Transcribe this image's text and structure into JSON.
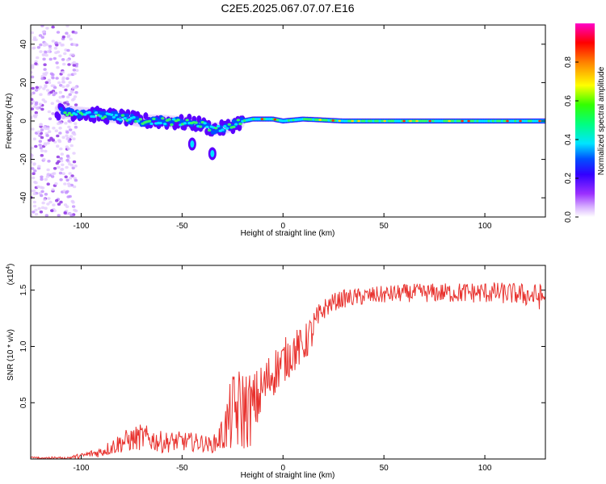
{
  "title": "C2E5.2025.067.07.07.E16",
  "chart_data": [
    {
      "type": "heatmap",
      "xlabel": "Height of straight line (km)",
      "ylabel": "Frequency (Hz)",
      "xlim": [
        -125,
        130
      ],
      "ylim": [
        -50,
        50
      ],
      "xticks": [
        -100,
        -50,
        0,
        50,
        100
      ],
      "yticks": [
        -40,
        -20,
        0,
        20,
        40
      ],
      "colorbar": {
        "label": "Normalized spectral amplitude",
        "range": [
          0,
          1
        ],
        "ticks": [
          "0.0",
          "0.2",
          "0.4",
          "0.6",
          "0.8"
        ],
        "colors": [
          "#ffffff",
          "#d9b3ff",
          "#9b30ff",
          "#3200ff",
          "#0050ff",
          "#00e5ff",
          "#00ff80",
          "#33ff00",
          "#ffff00",
          "#ff8000",
          "#ff0000",
          "#ff00c8"
        ]
      },
      "ridge": {
        "x": [
          -112,
          -100,
          -90,
          -80,
          -70,
          -60,
          -50,
          -45,
          -40,
          -35,
          -30,
          -25,
          -20,
          -15,
          -10,
          -5,
          0,
          10,
          30,
          60,
          100,
          130
        ],
        "freq_hz": [
          5,
          4,
          3,
          2,
          0,
          0,
          -1,
          -1,
          -2,
          -4,
          -4,
          -2,
          0,
          1,
          1,
          1,
          0,
          1,
          0,
          0,
          0,
          0
        ]
      },
      "noise_region": {
        "x": [
          -125,
          -102
        ],
        "freq_hz": [
          -50,
          50
        ]
      },
      "outlier_blobs": [
        {
          "x": -45,
          "freq_hz": -12
        },
        {
          "x": -35,
          "freq_hz": -17
        }
      ]
    },
    {
      "type": "line",
      "xlabel": "Height of straight line (km)",
      "ylabel": "SNR (10 * v/v)",
      "yscale_label": "(x10",
      "yscale_exponent": "4",
      "xlim": [
        -125,
        130
      ],
      "ylim": [
        0,
        1.72
      ],
      "xticks": [
        -100,
        -50,
        0,
        50,
        100
      ],
      "yticks": [
        "0.5",
        "1.0",
        "1.5"
      ],
      "ytick_values": [
        0.5,
        1.0,
        1.5
      ],
      "color": "#e8322e",
      "envelope": {
        "x": [
          -125,
          -110,
          -100,
          -90,
          -80,
          -70,
          -60,
          -50,
          -40,
          -35,
          -30,
          -25,
          -20,
          -15,
          -10,
          -5,
          0,
          5,
          10,
          15,
          20,
          25,
          30,
          40,
          60,
          80,
          100,
          115,
          130
        ],
        "base": [
          0.0,
          0.0,
          0.02,
          0.05,
          0.12,
          0.16,
          0.12,
          0.13,
          0.12,
          0.1,
          0.17,
          0.3,
          0.32,
          0.35,
          0.55,
          0.7,
          0.8,
          0.9,
          0.95,
          1.1,
          1.3,
          1.37,
          1.4,
          1.42,
          1.45,
          1.45,
          1.45,
          1.44,
          1.4
        ],
        "amplitude": [
          0.0,
          0.01,
          0.03,
          0.06,
          0.12,
          0.15,
          0.12,
          0.11,
          0.1,
          0.08,
          0.2,
          0.45,
          0.5,
          0.4,
          0.3,
          0.28,
          0.25,
          0.25,
          0.2,
          0.22,
          0.12,
          0.1,
          0.1,
          0.1,
          0.1,
          0.11,
          0.12,
          0.12,
          0.15
        ]
      }
    }
  ]
}
